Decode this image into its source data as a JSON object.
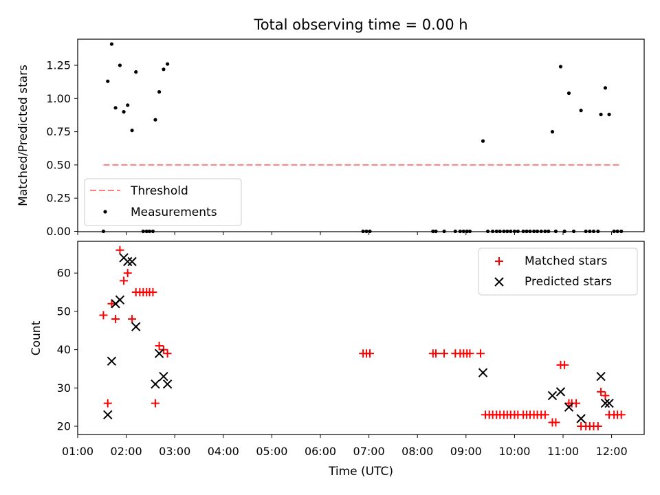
{
  "title": "Total observing time = 0.00 h",
  "chart_data": [
    {
      "type": "scatter",
      "ylabel": "Matched/Predicted stars",
      "ylim": [
        0,
        1.45
      ],
      "xlim_hours": [
        1.0,
        12.8
      ],
      "y_ticks": [
        "0.00",
        "0.25",
        "0.50",
        "0.75",
        "1.00",
        "1.25"
      ],
      "threshold": {
        "name": "Threshold",
        "value": 0.5,
        "x_range": [
          1.53,
          12.2
        ],
        "color": "#ff7f7f"
      },
      "legend_position": "lower left",
      "series": [
        {
          "name": "Measurements",
          "color": "#000000",
          "points": [
            [
              1.53,
              0.0
            ],
            [
              1.62,
              1.13
            ],
            [
              1.7,
              1.41
            ],
            [
              1.78,
              0.93
            ],
            [
              1.87,
              1.25
            ],
            [
              1.95,
              0.9
            ],
            [
              2.03,
              0.95
            ],
            [
              2.12,
              0.76
            ],
            [
              2.2,
              1.2
            ],
            [
              2.6,
              0.84
            ],
            [
              2.68,
              1.05
            ],
            [
              2.77,
              1.22
            ],
            [
              2.85,
              1.26
            ],
            [
              2.35,
              0.0
            ],
            [
              2.42,
              0.0
            ],
            [
              2.48,
              0.0
            ],
            [
              2.55,
              0.0
            ],
            [
              6.88,
              0.0
            ],
            [
              6.95,
              0.0
            ],
            [
              7.02,
              0.0
            ],
            [
              8.32,
              0.0
            ],
            [
              8.38,
              0.0
            ],
            [
              8.55,
              0.0
            ],
            [
              8.78,
              0.0
            ],
            [
              8.88,
              0.0
            ],
            [
              8.95,
              0.0
            ],
            [
              9.02,
              0.0
            ],
            [
              9.08,
              0.0
            ],
            [
              9.35,
              0.68
            ],
            [
              9.45,
              0.0
            ],
            [
              9.55,
              0.0
            ],
            [
              9.63,
              0.0
            ],
            [
              9.7,
              0.0
            ],
            [
              9.78,
              0.0
            ],
            [
              9.85,
              0.0
            ],
            [
              9.92,
              0.0
            ],
            [
              10.0,
              0.0
            ],
            [
              10.07,
              0.0
            ],
            [
              10.18,
              0.0
            ],
            [
              10.25,
              0.0
            ],
            [
              10.32,
              0.0
            ],
            [
              10.4,
              0.0
            ],
            [
              10.47,
              0.0
            ],
            [
              10.55,
              0.0
            ],
            [
              10.63,
              0.0
            ],
            [
              10.7,
              0.0
            ],
            [
              10.78,
              0.75
            ],
            [
              10.85,
              0.0
            ],
            [
              10.95,
              1.24
            ],
            [
              11.03,
              0.0
            ],
            [
              11.12,
              1.04
            ],
            [
              11.22,
              0.0
            ],
            [
              11.37,
              0.91
            ],
            [
              11.47,
              0.0
            ],
            [
              11.55,
              0.0
            ],
            [
              11.63,
              0.0
            ],
            [
              11.72,
              0.0
            ],
            [
              11.78,
              0.88
            ],
            [
              11.87,
              1.08
            ],
            [
              11.95,
              0.88
            ],
            [
              12.05,
              0.0
            ],
            [
              12.12,
              0.0
            ],
            [
              12.2,
              0.0
            ]
          ]
        }
      ]
    },
    {
      "type": "scatter",
      "xlabel": "Time (UTC)",
      "ylabel": "Count",
      "ylim": [
        18,
        68
      ],
      "xlim_hours": [
        1.0,
        12.8
      ],
      "y_ticks": [
        "20",
        "30",
        "40",
        "50",
        "60"
      ],
      "x_ticks": [
        "01:00",
        "02:00",
        "03:00",
        "04:00",
        "05:00",
        "06:00",
        "07:00",
        "08:00",
        "09:00",
        "10:00",
        "11:00",
        "12:00"
      ],
      "legend_position": "upper right",
      "series": [
        {
          "name": "Matched stars",
          "color": "#ff0000",
          "marker": "plus",
          "points": [
            [
              1.53,
              49
            ],
            [
              1.62,
              26
            ],
            [
              1.7,
              52
            ],
            [
              1.78,
              48
            ],
            [
              1.87,
              66
            ],
            [
              1.95,
              58
            ],
            [
              2.03,
              60
            ],
            [
              2.12,
              48
            ],
            [
              2.2,
              55
            ],
            [
              2.28,
              55
            ],
            [
              2.35,
              55
            ],
            [
              2.42,
              55
            ],
            [
              2.48,
              55
            ],
            [
              2.55,
              55
            ],
            [
              2.6,
              26
            ],
            [
              2.68,
              41
            ],
            [
              2.77,
              40
            ],
            [
              2.85,
              39
            ],
            [
              6.88,
              39
            ],
            [
              6.95,
              39
            ],
            [
              7.02,
              39
            ],
            [
              8.32,
              39
            ],
            [
              8.38,
              39
            ],
            [
              8.55,
              39
            ],
            [
              8.78,
              39
            ],
            [
              8.88,
              39
            ],
            [
              8.95,
              39
            ],
            [
              9.02,
              39
            ],
            [
              9.08,
              39
            ],
            [
              9.3,
              39
            ],
            [
              9.4,
              23
            ],
            [
              9.48,
              23
            ],
            [
              9.55,
              23
            ],
            [
              9.63,
              23
            ],
            [
              9.7,
              23
            ],
            [
              9.78,
              23
            ],
            [
              9.85,
              23
            ],
            [
              9.92,
              23
            ],
            [
              10.0,
              23
            ],
            [
              10.07,
              23
            ],
            [
              10.18,
              23
            ],
            [
              10.25,
              23
            ],
            [
              10.32,
              23
            ],
            [
              10.4,
              23
            ],
            [
              10.47,
              23
            ],
            [
              10.55,
              23
            ],
            [
              10.63,
              23
            ],
            [
              10.78,
              21
            ],
            [
              10.85,
              21
            ],
            [
              10.95,
              36
            ],
            [
              11.03,
              36
            ],
            [
              11.12,
              26
            ],
            [
              11.18,
              26
            ],
            [
              11.27,
              26
            ],
            [
              11.37,
              20
            ],
            [
              11.47,
              20
            ],
            [
              11.55,
              20
            ],
            [
              11.63,
              20
            ],
            [
              11.72,
              20
            ],
            [
              11.78,
              29
            ],
            [
              11.87,
              28
            ],
            [
              11.95,
              23
            ],
            [
              12.05,
              23
            ],
            [
              12.12,
              23
            ],
            [
              12.2,
              23
            ]
          ]
        },
        {
          "name": "Predicted stars",
          "color": "#000000",
          "marker": "x",
          "points": [
            [
              1.62,
              23
            ],
            [
              1.7,
              37
            ],
            [
              1.78,
              52
            ],
            [
              1.87,
              53
            ],
            [
              1.95,
              64
            ],
            [
              2.03,
              63
            ],
            [
              2.12,
              63
            ],
            [
              2.2,
              46
            ],
            [
              2.6,
              31
            ],
            [
              2.68,
              39
            ],
            [
              2.77,
              33
            ],
            [
              2.85,
              31
            ],
            [
              9.35,
              34
            ],
            [
              10.78,
              28
            ],
            [
              10.95,
              29
            ],
            [
              11.12,
              25
            ],
            [
              11.37,
              22
            ],
            [
              11.78,
              33
            ],
            [
              11.87,
              26
            ],
            [
              11.95,
              26
            ]
          ]
        }
      ]
    }
  ]
}
